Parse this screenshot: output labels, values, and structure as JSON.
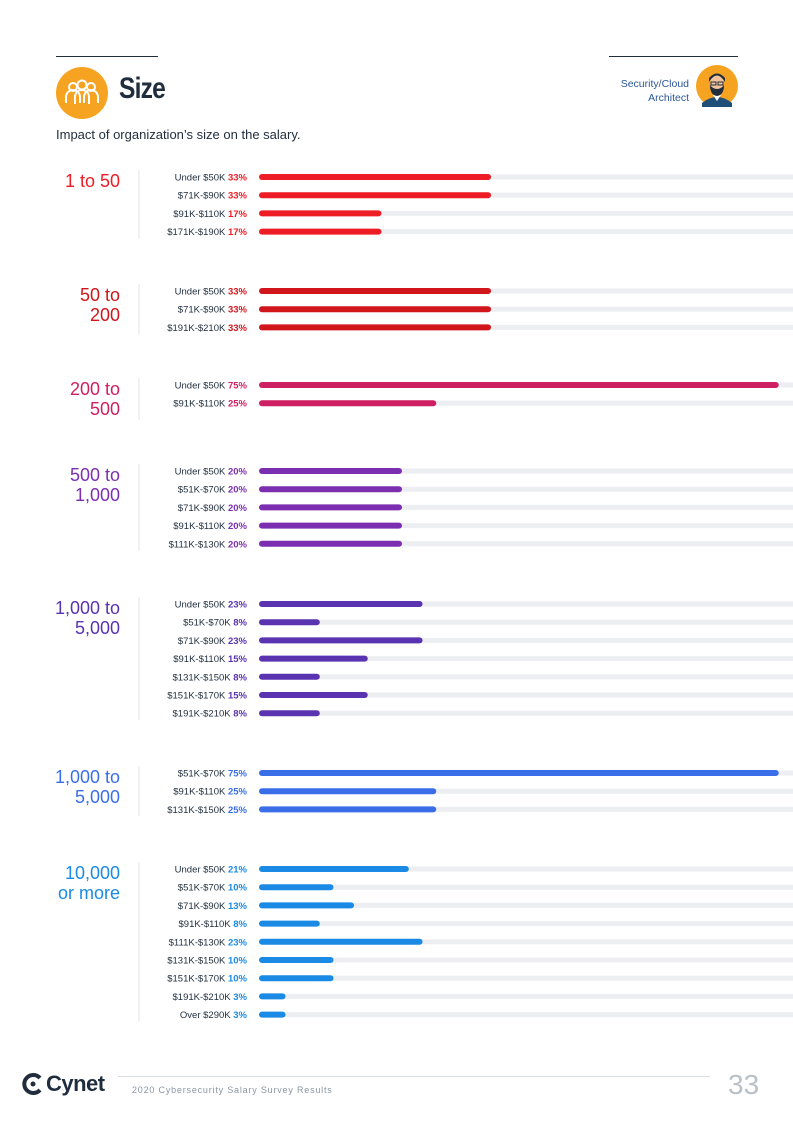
{
  "header": {
    "title": "Size",
    "role": [
      "Security/Cloud",
      "Architect"
    ],
    "subtitle": "Impact of organization’s size on the salary."
  },
  "colors": {
    "1": "#ee1c25",
    "2": "#d0151b",
    "3": "#cd1f62",
    "4": "#7b2fb0",
    "5": "#5a33b0",
    "6": "#3a6ee8",
    "7": "#1a8ae4",
    "track": "#eceef1",
    "text": "#1f2d3d",
    "brand_orange": "#f6a321"
  },
  "chart_data": {
    "type": "bar",
    "orientation": "horizontal",
    "value_unit": "percent",
    "xlim": [
      0,
      100
    ],
    "groups": [
      {
        "label": [
          "1 to 50"
        ],
        "color_key": "1",
        "categories": [
          "Under $50K",
          "$71K-$90K",
          "$91K-$110K",
          "$171K-$190K"
        ],
        "values": [
          33,
          33,
          17,
          17
        ]
      },
      {
        "label": [
          "50 to",
          "200"
        ],
        "color_key": "2",
        "categories": [
          "Under $50K",
          "$71K-$90K",
          "$191K-$210K"
        ],
        "values": [
          33,
          33,
          33
        ]
      },
      {
        "label": [
          "200 to",
          "500"
        ],
        "color_key": "3",
        "categories": [
          "Under $50K",
          "$91K-$110K"
        ],
        "values": [
          75,
          25
        ]
      },
      {
        "label": [
          "500 to",
          "1,000"
        ],
        "color_key": "4",
        "categories": [
          "Under $50K",
          "$51K-$70K",
          "$71K-$90K",
          "$91K-$110K",
          "$111K-$130K"
        ],
        "values": [
          20,
          20,
          20,
          20,
          20
        ]
      },
      {
        "label": [
          "1,000 to",
          "5,000"
        ],
        "color_key": "5",
        "categories": [
          "Under $50K",
          "$51K-$70K",
          "$71K-$90K",
          "$91K-$110K",
          "$131K-$150K",
          "$151K-$170K",
          "$191K-$210K"
        ],
        "values": [
          23,
          8,
          23,
          15,
          8,
          15,
          8
        ]
      },
      {
        "label": [
          "1,000 to",
          "5,000"
        ],
        "color_key": "6",
        "categories": [
          "$51K-$70K",
          "$91K-$110K",
          "$131K-$150K"
        ],
        "values": [
          75,
          25,
          25
        ]
      },
      {
        "label": [
          "10,000",
          "or more"
        ],
        "color_key": "7",
        "categories": [
          "Under $50K",
          "$51K-$70K",
          "$71K-$90K",
          "$91K-$110K",
          "$111K-$130K",
          "$131K-$150K",
          "$151K-$170K",
          "$191K-$210K",
          "Over $290K"
        ],
        "values": [
          21,
          10,
          13,
          8,
          23,
          10,
          10,
          3,
          3
        ]
      }
    ]
  },
  "footer": {
    "brand": "Cynet",
    "report_title": "2020 Cybersecurity Salary Survey Results",
    "page_number": "33"
  }
}
